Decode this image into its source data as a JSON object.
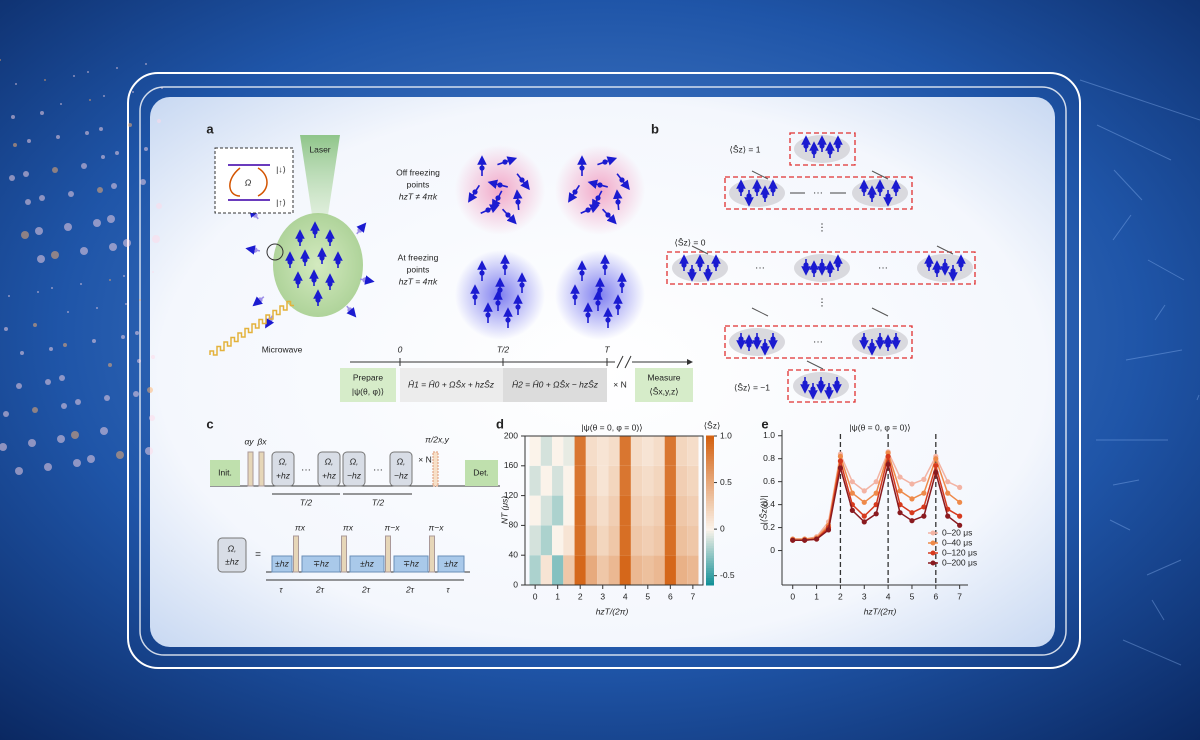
{
  "panel_a": {
    "label": "a",
    "laser": "Laser",
    "inset_down": "|↓⟩",
    "inset_up": "|↑⟩",
    "inset_omega": "Ω",
    "microwave": "Microwave",
    "off_lines": [
      "Off freezing",
      "points",
      "hzT ≠ 4πk"
    ],
    "at_lines": [
      "At freezing",
      "points",
      "hzT = 4πk"
    ],
    "timeline": {
      "ticks": [
        "0",
        "T/2",
        "T"
      ],
      "prepare": [
        "Prepare",
        "|ψ(θ, φ)⟩"
      ],
      "h1": "Ĥ1 = Ĥ0 + ΩŜx + hzŜz",
      "h2": "Ĥ2 = Ĥ0 + ΩŜx − hzŜz",
      "repeat": "× N",
      "measure": [
        "Measure",
        "⟨Ŝx,y,z⟩"
      ]
    }
  },
  "panel_b": {
    "label": "b",
    "sz_plus": "⟨Ŝz⟩ = 1",
    "sz_zero": "⟨Ŝz⟩ = 0",
    "sz_minus": "⟨Ŝz⟩ = −1",
    "ellipsis_h": "···",
    "ellipsis_v": "⋮"
  },
  "panel_c": {
    "label": "c",
    "init": "Init.",
    "det": "Det.",
    "alpha": "αy",
    "beta": "βx",
    "blocks": [
      [
        "Ω,",
        "+hz"
      ],
      [
        "Ω,",
        "+hz"
      ],
      [
        "Ω,",
        "−hz"
      ],
      [
        "Ω,",
        "−hz"
      ]
    ],
    "dots": "···",
    "repeat": "× N",
    "final": "π/2x,y",
    "half": "T/2",
    "unit": [
      "Ω,",
      "±hz"
    ],
    "equals": "=",
    "pulses": [
      "πx",
      "πx",
      "π−x",
      "π−x"
    ],
    "segments": [
      "±hz",
      "∓hz",
      "±hz",
      "∓hz",
      "±hz"
    ],
    "spacing": [
      "τ",
      "2τ",
      "2τ",
      "2τ",
      "τ"
    ]
  },
  "chart_data": [
    {
      "type": "heatmap",
      "label": "d",
      "title": "|ψ(θ = 0, φ = 0)⟩",
      "x_label": "hzT/(2π)",
      "y_label": "NT (μs)",
      "colorbar_label": "⟨Ŝz⟩",
      "x": [
        0,
        0.5,
        1,
        1.5,
        2,
        2.5,
        3,
        3.5,
        4,
        4.5,
        5,
        5.5,
        6,
        6.5,
        7
      ],
      "y": [
        20,
        60,
        100,
        140,
        180
      ],
      "z": [
        [
          -0.2,
          0.1,
          -0.3,
          0.3,
          0.95,
          0.5,
          0.3,
          0.4,
          0.95,
          0.4,
          0.35,
          0.4,
          0.95,
          0.45,
          0.4
        ],
        [
          -0.1,
          -0.2,
          0.0,
          0.1,
          0.9,
          0.35,
          0.2,
          0.3,
          0.9,
          0.3,
          0.25,
          0.3,
          0.9,
          0.35,
          0.3
        ],
        [
          0.0,
          -0.1,
          -0.2,
          0.0,
          0.9,
          0.25,
          0.15,
          0.25,
          0.9,
          0.25,
          0.2,
          0.25,
          0.9,
          0.3,
          0.25
        ],
        [
          -0.1,
          0.0,
          -0.1,
          0.0,
          0.85,
          0.2,
          0.1,
          0.2,
          0.85,
          0.2,
          0.15,
          0.2,
          0.85,
          0.25,
          0.2
        ],
        [
          0.0,
          -0.1,
          0.0,
          -0.05,
          0.85,
          0.15,
          0.1,
          0.15,
          0.85,
          0.15,
          0.1,
          0.15,
          0.85,
          0.2,
          0.15
        ]
      ],
      "xlim": [
        -0.45,
        7.45
      ],
      "ylim": [
        0,
        200
      ],
      "xticks": [
        0,
        1,
        2,
        3,
        4,
        5,
        6,
        7
      ],
      "yticks": [
        0,
        40,
        80,
        120,
        160,
        200
      ],
      "clim": [
        -0.6,
        1.0
      ],
      "cticks": [
        {
          "value": 1,
          "label": "1.0"
        },
        0.5,
        0,
        -0.5
      ],
      "colormap": [
        "#0f8f96",
        "#fbf3ea",
        "#d3600f"
      ]
    },
    {
      "type": "line",
      "label": "e",
      "title": "|ψ(θ = 0, φ = 0)⟩",
      "x_label": "hzT/(2π)",
      "y_label": "|⟨Ŝz(t)⟩|",
      "x": [
        0,
        0.5,
        1,
        1.5,
        2,
        2.5,
        3,
        3.5,
        4,
        4.5,
        5,
        5.5,
        6,
        6.5,
        7
      ],
      "series": [
        {
          "name": "0–20 μs",
          "color": "#f3b3a3",
          "values": [
            0.1,
            0.1,
            0.12,
            0.25,
            0.84,
            0.6,
            0.52,
            0.6,
            0.86,
            0.64,
            0.58,
            0.62,
            0.82,
            0.6,
            0.55
          ]
        },
        {
          "name": "0–40 μs",
          "color": "#ee8a4a",
          "values": [
            0.1,
            0.1,
            0.11,
            0.22,
            0.82,
            0.5,
            0.42,
            0.5,
            0.85,
            0.52,
            0.45,
            0.5,
            0.8,
            0.5,
            0.42
          ]
        },
        {
          "name": "0–120 μs",
          "color": "#d63a1e",
          "values": [
            0.09,
            0.09,
            0.1,
            0.2,
            0.78,
            0.4,
            0.3,
            0.4,
            0.82,
            0.4,
            0.33,
            0.38,
            0.74,
            0.36,
            0.3
          ]
        },
        {
          "name": "0–200 μs",
          "color": "#8a1a1f",
          "values": [
            0.09,
            0.09,
            0.1,
            0.18,
            0.72,
            0.35,
            0.25,
            0.32,
            0.75,
            0.33,
            0.26,
            0.3,
            0.68,
            0.3,
            0.22
          ]
        }
      ],
      "reference_lines": [
        2,
        4,
        6
      ],
      "xlim": [
        -0.45,
        7.35
      ],
      "ylim": [
        -0.3,
        1.05
      ],
      "xticks": [
        0,
        1,
        2,
        3,
        4,
        5,
        6,
        7
      ],
      "yticks": [
        0,
        0.2,
        0.4,
        0.6,
        0.8,
        {
          "value": 1,
          "label": "1.0"
        }
      ],
      "legend": "lower right"
    }
  ]
}
